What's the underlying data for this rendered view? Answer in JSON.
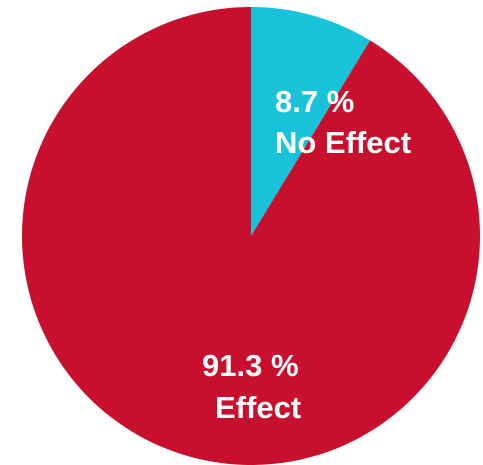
{
  "chart_data": {
    "type": "pie",
    "title": "",
    "slices": [
      {
        "label": "No Effect",
        "value": 8.7,
        "value_text": "8.7 %",
        "color": "#18c3d9"
      },
      {
        "label": "Effect",
        "value": 91.3,
        "value_text": "91.3 %",
        "color": "#c8102e"
      }
    ],
    "start_angle": "12 o'clock, clockwise",
    "legend": "none"
  }
}
